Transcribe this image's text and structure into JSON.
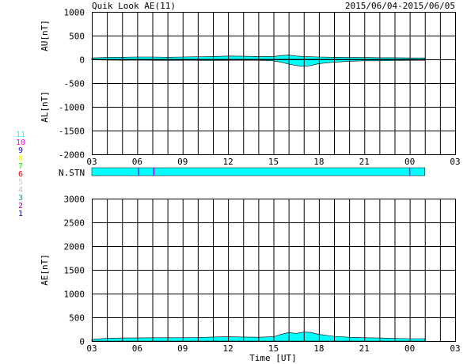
{
  "header": {
    "title": "Quik Look AE(11)",
    "date_range": "2015/06/04-2015/06/05"
  },
  "chart_data": [
    {
      "type": "area",
      "ylabel_top": "AU[nT]",
      "ylabel_bottom": "AL[nT]",
      "ylim": [
        -2000,
        1000
      ],
      "yticks": [
        1000,
        500,
        0,
        -500,
        -1000,
        -1500,
        -2000
      ],
      "xticks": [
        "03",
        "06",
        "09",
        "12",
        "15",
        "18",
        "21",
        "00",
        "03"
      ],
      "xlim_hours_ut": [
        3,
        27
      ],
      "fill_color": "#00ffff",
      "grid": true,
      "series": [
        {
          "role": "AU",
          "x": [
            3,
            4,
            5,
            6,
            7,
            8,
            9,
            10,
            11,
            12,
            13,
            14,
            15,
            15.5,
            16,
            16.5,
            17,
            18,
            19,
            20,
            21,
            22,
            23,
            24,
            25
          ],
          "values": [
            30,
            40,
            45,
            50,
            50,
            45,
            50,
            55,
            60,
            70,
            65,
            60,
            60,
            80,
            90,
            70,
            60,
            50,
            45,
            40,
            40,
            35,
            35,
            30,
            30
          ]
        },
        {
          "role": "AL",
          "x": [
            3,
            4,
            5,
            6,
            7,
            8,
            9,
            10,
            11,
            12,
            13,
            14,
            15,
            15.5,
            16,
            16.5,
            17,
            17.5,
            18,
            19,
            20,
            21,
            22,
            23,
            24,
            25
          ],
          "values": [
            -10,
            -15,
            -20,
            -15,
            -20,
            -25,
            -20,
            -20,
            -25,
            -20,
            -20,
            -20,
            -30,
            -60,
            -100,
            -130,
            -150,
            -130,
            -90,
            -60,
            -40,
            -30,
            -30,
            -25,
            -20,
            -20
          ]
        }
      ]
    },
    {
      "type": "station",
      "label": "N.STN",
      "fill_color": "#00ffff",
      "xlim_hours_ut": [
        3,
        25
      ],
      "marker_color": "#a000ff",
      "marker_hours_ut": [
        6.1,
        7.1,
        24.0
      ]
    },
    {
      "type": "area",
      "ylabel": "AE[nT]",
      "xlabel": "Time [UT]",
      "ylim": [
        0,
        3000
      ],
      "yticks": [
        3000,
        2500,
        2000,
        1500,
        1000,
        500,
        0
      ],
      "xticks": [
        "03",
        "06",
        "09",
        "12",
        "15",
        "18",
        "21",
        "00",
        "03"
      ],
      "xlim_hours_ut": [
        3,
        27
      ],
      "fill_color": "#00ffff",
      "grid": true,
      "x": [
        3,
        4,
        5,
        6,
        7,
        8,
        9,
        10,
        11,
        12,
        13,
        14,
        15,
        15.5,
        16,
        16.5,
        17,
        17.5,
        18,
        19,
        20,
        21,
        22,
        23,
        24,
        25
      ],
      "values": [
        40,
        55,
        65,
        65,
        70,
        70,
        70,
        75,
        85,
        90,
        85,
        80,
        90,
        140,
        180,
        160,
        190,
        180,
        140,
        100,
        80,
        70,
        65,
        55,
        50,
        50
      ]
    }
  ],
  "station_legend": {
    "items": [
      {
        "label": "11",
        "color": "#00ffff"
      },
      {
        "label": "10",
        "color": "#ff00ff"
      },
      {
        "label": "9",
        "color": "#0000ff"
      },
      {
        "label": "8",
        "color": "#ffff00"
      },
      {
        "label": "7",
        "color": "#00ff00"
      },
      {
        "label": "6",
        "color": "#ff0000"
      },
      {
        "label": "5",
        "color": "#cfcfcf"
      },
      {
        "label": "4",
        "color": "#c0c0c0"
      },
      {
        "label": "3",
        "color": "#00a0a0"
      },
      {
        "label": "2",
        "color": "#a000a0"
      },
      {
        "label": "1",
        "color": "#0000a0"
      }
    ]
  }
}
